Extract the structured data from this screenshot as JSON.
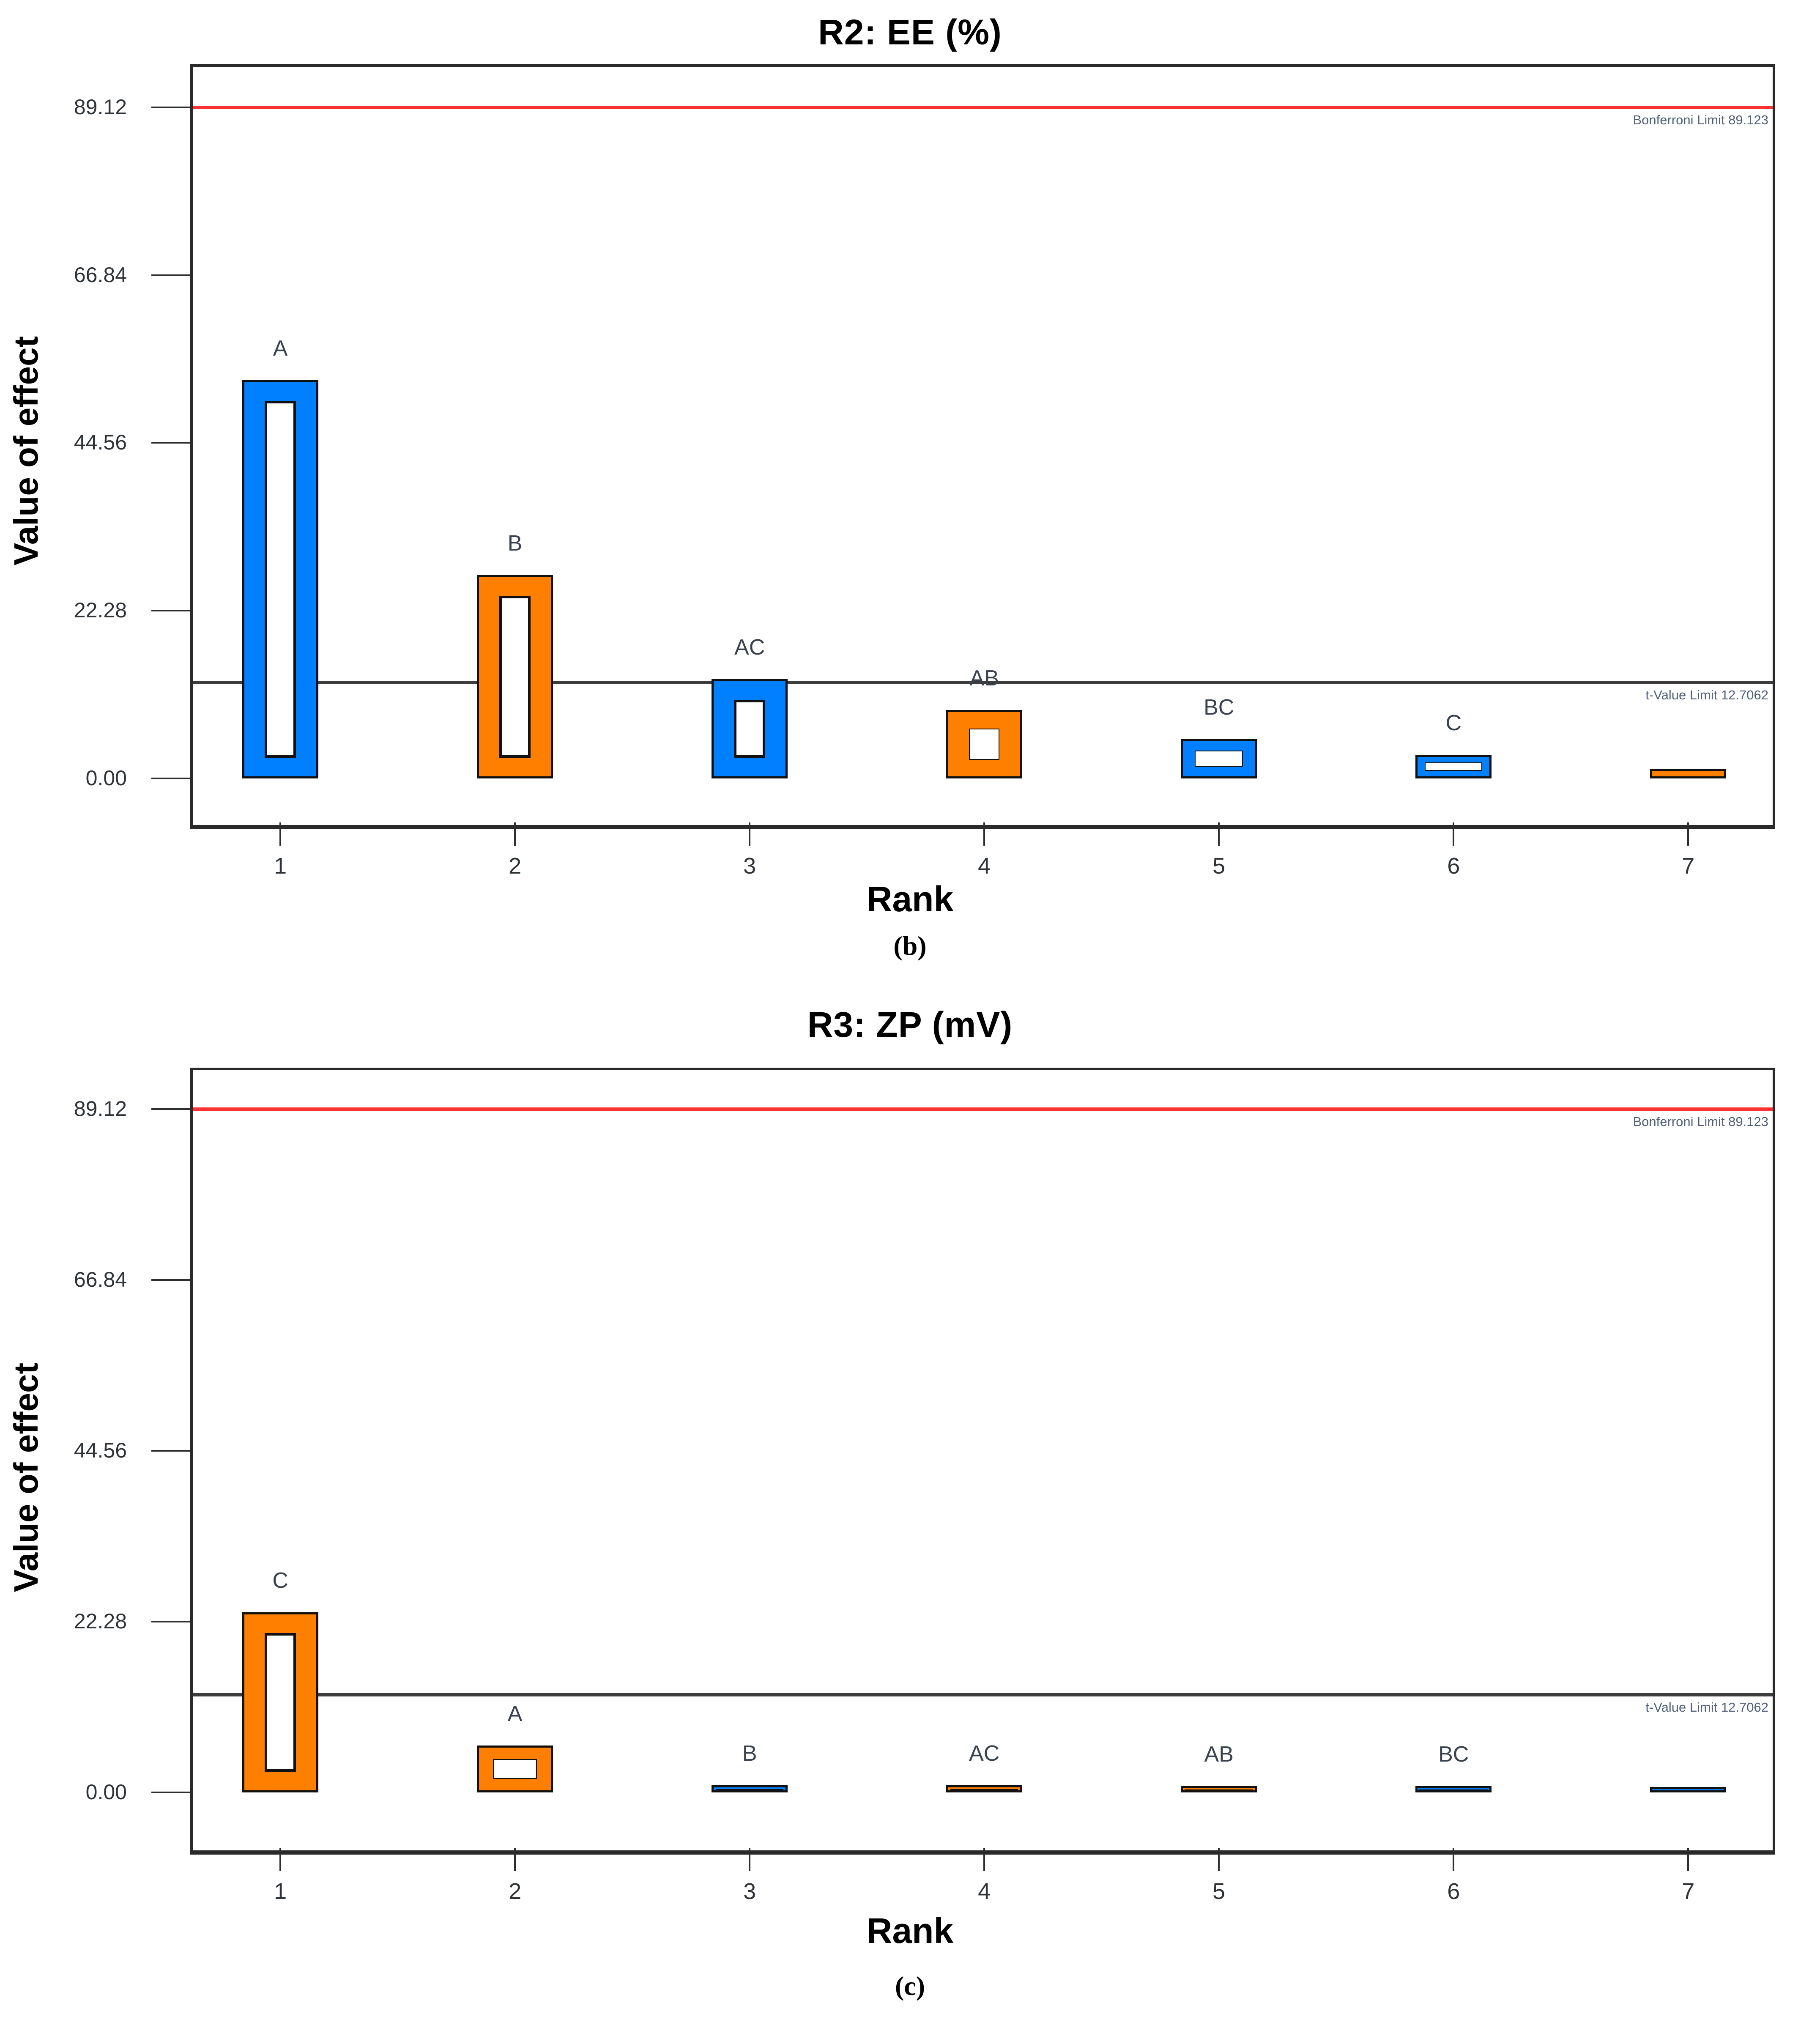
{
  "figure": {
    "background": "#ffffff",
    "colors": {
      "blue_bar": "#0080ff",
      "orange_bar": "#ff8000",
      "bonferroni_line": "#ff3232",
      "t_value_line": "#3d3d3d",
      "axis_frame": "#2a2a2a",
      "annotation_text": "#50607a"
    }
  },
  "chart_data": [
    {
      "type": "bar",
      "panel_caption": "(b)",
      "title": "R2: EE (%)",
      "xlabel": "Rank",
      "ylabel": "Value of effect",
      "categories": [
        "1",
        "2",
        "3",
        "4",
        "5",
        "6",
        "7"
      ],
      "bars": [
        {
          "category": "1",
          "label": "A",
          "value": 52.9,
          "color": "#0080ff",
          "center": "white"
        },
        {
          "category": "2",
          "label": "B",
          "value": 27.0,
          "color": "#ff8000",
          "center": "white"
        },
        {
          "category": "3",
          "label": "AC",
          "value": 13.2,
          "color": "#0080ff",
          "center": "white"
        },
        {
          "category": "4",
          "label": "AB",
          "value": 9.1,
          "color": "#ff8000",
          "center": "white"
        },
        {
          "category": "5",
          "label": "BC",
          "value": 5.2,
          "color": "#0080ff",
          "center": "white"
        },
        {
          "category": "6",
          "label": "C",
          "value": 3.1,
          "color": "#0080ff",
          "center": "white"
        },
        {
          "category": "7",
          "label": "",
          "value": 1.2,
          "color": "#ff8000",
          "center": "none"
        }
      ],
      "ytick_labels": [
        "89.12",
        "66.84",
        "44.56",
        "22.28",
        "0.00"
      ],
      "ytick_values": [
        89.12,
        66.84,
        44.56,
        22.28,
        0.0
      ],
      "ylim": [
        -5.3,
        94.5
      ],
      "grid": false,
      "legend": "none",
      "reference_lines": [
        {
          "name": "bonferroni-limit",
          "label": "Bonferroni Limit 89.123",
          "value": 89.123,
          "color": "#ff3232",
          "thickness": 8
        },
        {
          "name": "t-value-limit",
          "label": "t-Value Limit 12.7062",
          "value": 12.7062,
          "color": "#3d3d3d",
          "thickness": 8
        }
      ]
    },
    {
      "type": "bar",
      "panel_caption": "(c)",
      "title": "R3: ZP (mV)",
      "xlabel": "Rank",
      "ylabel": "Value of effect",
      "categories": [
        "1",
        "2",
        "3",
        "4",
        "5",
        "6",
        "7"
      ],
      "bars": [
        {
          "category": "1",
          "label": "C",
          "value": 23.5,
          "color": "#ff8000",
          "center": "white"
        },
        {
          "category": "2",
          "label": "A",
          "value": 6.1,
          "color": "#ff8000",
          "center": "white"
        },
        {
          "category": "3",
          "label": "B",
          "value": 0.9,
          "color": "#0080ff",
          "center": "white"
        },
        {
          "category": "4",
          "label": "AC",
          "value": 0.9,
          "color": "#ff8000",
          "center": "white"
        },
        {
          "category": "5",
          "label": "AB",
          "value": 0.8,
          "color": "#ff8000",
          "center": "black"
        },
        {
          "category": "6",
          "label": "BC",
          "value": 0.8,
          "color": "#0080ff",
          "center": "black"
        },
        {
          "category": "7",
          "label": "",
          "value": 0.7,
          "color": "#0080ff",
          "center": "none"
        }
      ],
      "ytick_labels": [
        "89.12",
        "66.84",
        "44.56",
        "22.28",
        "0.00"
      ],
      "ytick_values": [
        89.12,
        66.84,
        44.56,
        22.28,
        0.0
      ],
      "ylim": [
        -6.7,
        94.2
      ],
      "grid": false,
      "legend": "none",
      "reference_lines": [
        {
          "name": "bonferroni-limit",
          "label": "Bonferroni Limit 89.123",
          "value": 89.123,
          "color": "#ff3232",
          "thickness": 8
        },
        {
          "name": "t-value-limit",
          "label": "t-Value Limit 12.7062",
          "value": 12.7062,
          "color": "#3d3d3d",
          "thickness": 8
        }
      ]
    }
  ]
}
